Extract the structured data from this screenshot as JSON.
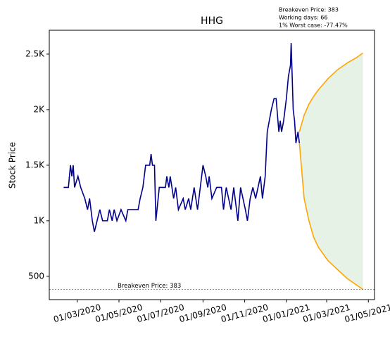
{
  "chart_data": {
    "type": "line",
    "title": "HHG",
    "y_label": "Stock Price",
    "annotations": [
      "Breakeven Price: 383",
      "Working days: 66",
      "1% Worst case: -77.47%"
    ],
    "xlim": [
      "2020-01-20",
      "2021-05-10"
    ],
    "ylim": [
      290,
      2715
    ],
    "xticks": [
      {
        "value": "2020-03-01",
        "label": "01/03/2020"
      },
      {
        "value": "2020-05-01",
        "label": "01/05/2020"
      },
      {
        "value": "2020-07-01",
        "label": "01/07/2020"
      },
      {
        "value": "2020-09-01",
        "label": "01/09/2020"
      },
      {
        "value": "2020-11-01",
        "label": "01/11/2020"
      },
      {
        "value": "2021-01-01",
        "label": "01/01/2021"
      },
      {
        "value": "2021-03-01",
        "label": "01/03/2021"
      },
      {
        "value": "2021-05-01",
        "label": "01/05/2021"
      }
    ],
    "yticks": [
      500,
      {
        "value": 1000,
        "label": "1K"
      },
      {
        "value": 1500,
        "label": "1.5K"
      },
      {
        "value": 2000,
        "label": "2K"
      },
      {
        "value": 2500,
        "label": "2.5K"
      }
    ],
    "series": [
      {
        "color": "#00008b",
        "x": [
          "2020-02-10",
          "2020-02-17",
          "2020-02-20",
          "2020-02-22",
          "2020-02-24",
          "2020-02-26",
          "2020-03-02",
          "2020-03-06",
          "2020-03-12",
          "2020-03-16",
          "2020-03-19",
          "2020-03-23",
          "2020-03-26",
          "2020-03-30",
          "2020-04-03",
          "2020-04-07",
          "2020-04-14",
          "2020-04-17",
          "2020-04-21",
          "2020-04-24",
          "2020-04-28",
          "2020-05-04",
          "2020-05-11",
          "2020-05-14",
          "2020-05-25",
          "2020-05-29",
          "2020-06-01",
          "2020-06-05",
          "2020-06-09",
          "2020-06-15",
          "2020-06-17",
          "2020-06-19",
          "2020-06-22",
          "2020-06-24",
          "2020-06-29",
          "2020-07-08",
          "2020-07-10",
          "2020-07-13",
          "2020-07-15",
          "2020-07-20",
          "2020-07-23",
          "2020-07-27",
          "2020-08-03",
          "2020-08-06",
          "2020-08-11",
          "2020-08-14",
          "2020-08-19",
          "2020-08-24",
          "2020-08-28",
          "2020-09-01",
          "2020-09-05",
          "2020-09-08",
          "2020-09-10",
          "2020-09-14",
          "2020-09-21",
          "2020-09-28",
          "2020-10-01",
          "2020-10-05",
          "2020-10-12",
          "2020-10-16",
          "2020-10-22",
          "2020-10-26",
          "2020-11-02",
          "2020-11-05",
          "2020-11-09",
          "2020-11-13",
          "2020-11-17",
          "2020-11-24",
          "2020-11-27",
          "2020-12-01",
          "2020-12-04",
          "2020-12-07",
          "2020-12-10",
          "2020-12-14",
          "2020-12-17",
          "2020-12-21",
          "2020-12-23",
          "2020-12-25",
          "2020-12-28",
          "2021-01-01",
          "2021-01-04",
          "2021-01-07",
          "2021-01-08",
          "2021-01-11",
          "2021-01-13",
          "2021-01-15",
          "2021-01-18",
          "2021-01-20"
        ],
        "values": [
          1300,
          1300,
          1500,
          1400,
          1500,
          1300,
          1400,
          1300,
          1200,
          1100,
          1200,
          1000,
          900,
          1000,
          1100,
          1000,
          1000,
          1100,
          1000,
          1100,
          1000,
          1100,
          1000,
          1100,
          1100,
          1100,
          1200,
          1300,
          1500,
          1500,
          1600,
          1500,
          1500,
          1000,
          1300,
          1300,
          1400,
          1300,
          1400,
          1200,
          1300,
          1100,
          1200,
          1100,
          1200,
          1100,
          1300,
          1100,
          1300,
          1500,
          1400,
          1300,
          1400,
          1200,
          1300,
          1300,
          1100,
          1300,
          1100,
          1300,
          1000,
          1300,
          1100,
          1000,
          1200,
          1300,
          1200,
          1400,
          1200,
          1400,
          1800,
          1900,
          2000,
          2100,
          2100,
          1800,
          1900,
          1800,
          1900,
          2100,
          2300,
          2400,
          2600,
          2000,
          1900,
          1700,
          1800,
          1700
        ]
      }
    ],
    "band": {
      "color": "#ffa500",
      "fill_color": "#e5f2e5",
      "x": [
        "2021-01-20",
        "2021-01-27",
        "2021-02-03",
        "2021-02-10",
        "2021-02-17",
        "2021-02-24",
        "2021-03-03",
        "2021-03-17",
        "2021-03-31",
        "2021-04-14",
        "2021-04-23"
      ],
      "upper": [
        1800,
        1950,
        2050,
        2120,
        2180,
        2230,
        2280,
        2360,
        2420,
        2470,
        2510
      ],
      "lower": [
        1700,
        1200,
        1000,
        850,
        760,
        700,
        640,
        560,
        480,
        420,
        383
      ]
    },
    "hline": {
      "value": 383,
      "label": "Breakeven Price: 383",
      "color": "#ff0000"
    }
  }
}
